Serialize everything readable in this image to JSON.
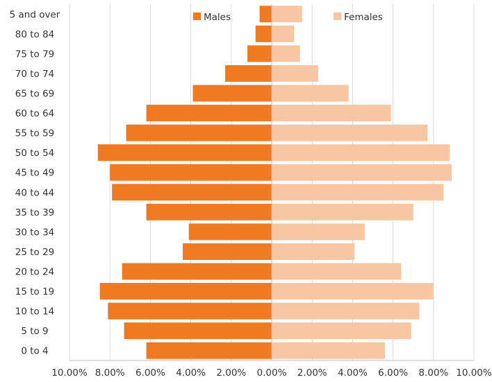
{
  "chart_data": {
    "type": "bar",
    "orientation": "horizontal",
    "layout": "population-pyramid",
    "categories": [
      "0 to 4",
      "5 to 9",
      "10 to 14",
      "15 to 19",
      "20 to 24",
      "25 to 29",
      "30 to 34",
      "35 to 39",
      "40 to 44",
      "45 to 49",
      "50 to 54",
      "55 to 59",
      "60 to 64",
      "65 to 69",
      "70 to 74",
      "75 to 79",
      "80 to 84",
      "5 and over"
    ],
    "series": [
      {
        "name": "Males",
        "color": "#F07A22",
        "direction": "left",
        "values": [
          6.2,
          7.3,
          8.1,
          8.5,
          7.4,
          4.4,
          4.1,
          6.2,
          7.9,
          8.0,
          8.6,
          7.2,
          6.2,
          3.9,
          2.3,
          1.2,
          0.8,
          0.6
        ]
      },
      {
        "name": "Females",
        "color": "#F8C6A3",
        "direction": "right",
        "values": [
          5.6,
          6.9,
          7.3,
          8.0,
          6.4,
          4.1,
          4.6,
          7.0,
          8.5,
          8.9,
          8.8,
          7.7,
          5.9,
          3.8,
          2.3,
          1.4,
          1.1,
          1.5
        ]
      }
    ],
    "x_ticks": [
      "10.00%",
      "8.00%",
      "6.00%",
      "4.00%",
      "2.00%",
      "0.00%",
      "2.00%",
      "4.00%",
      "6.00%",
      "8.00%",
      "10.00%"
    ],
    "xlim": [
      -10,
      10
    ],
    "grid": true,
    "legend_position": "top-center",
    "title": "",
    "xlabel": "",
    "ylabel": ""
  }
}
